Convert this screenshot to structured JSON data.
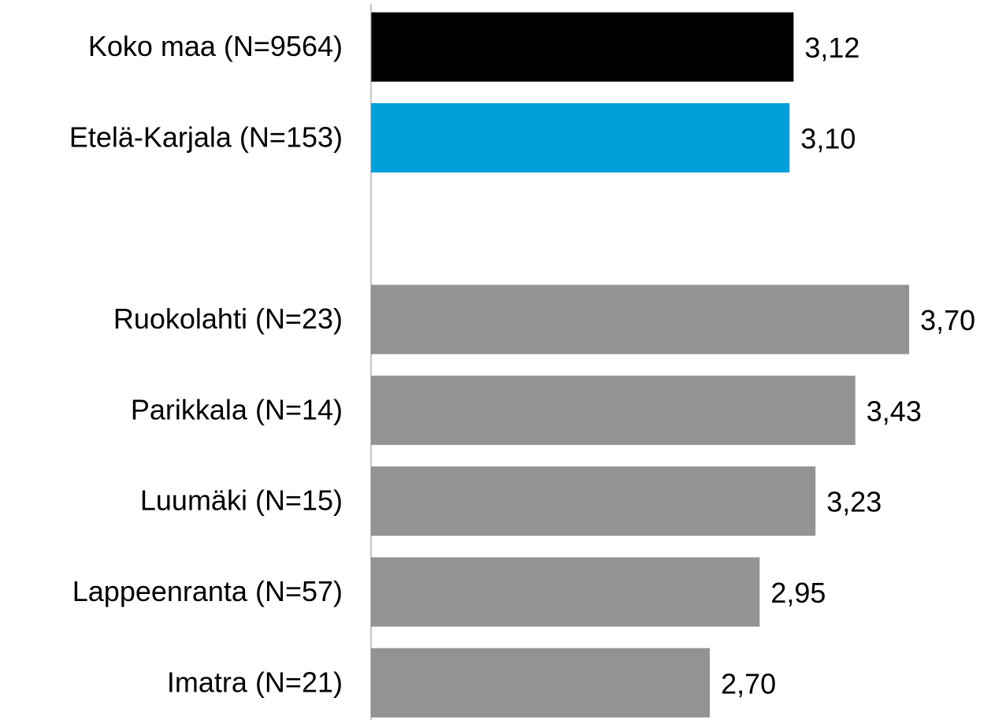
{
  "chart_data": {
    "type": "bar",
    "orientation": "horizontal",
    "categories": [
      "Koko maa (N=9564)",
      "Etelä-Karjala (N=153)",
      null,
      "Ruokolahti (N=23)",
      "Parikkala (N=14)",
      "Luumäki (N=15)",
      "Lappeenranta  (N=57)",
      "Imatra (N=21)"
    ],
    "values": [
      3.12,
      3.1,
      null,
      3.7,
      3.43,
      3.23,
      2.95,
      2.7
    ],
    "value_labels": [
      "3,12",
      "3,10",
      null,
      "3,70",
      "3,43",
      "3,23",
      "2,95",
      "2,70"
    ],
    "colors": [
      "#000000",
      "#009fda",
      null,
      "#939393",
      "#939393",
      "#939393",
      "#939393",
      "#939393"
    ],
    "xlim": [
      1,
      4
    ],
    "grid": false
  }
}
